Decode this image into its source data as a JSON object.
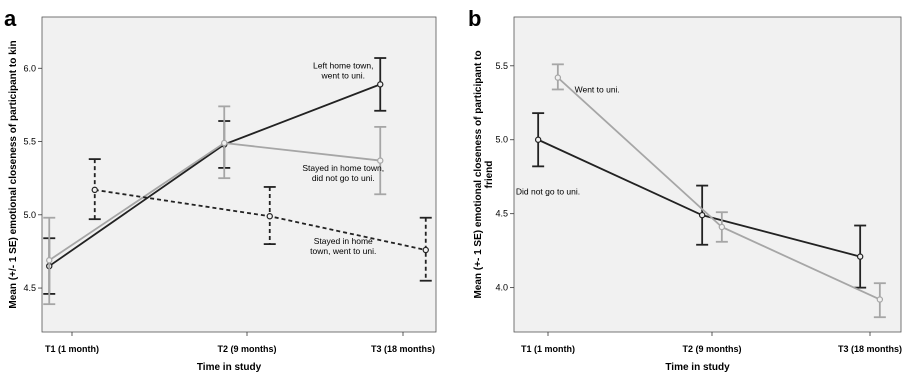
{
  "figure": {
    "panels": [
      {
        "letter": "a",
        "chart_data": {
          "type": "line",
          "categories": [
            "T1 (1 month)",
            "T2 (9 months)",
            "T3 (18 months)"
          ],
          "xlabel": "Time in study",
          "ylabel": "Mean (+/- 1 SE) emotional closeness of participant to kin",
          "ylim": [
            4.2,
            6.35
          ],
          "yticks": [
            "4.5",
            "5.0",
            "5.5",
            "6.0"
          ],
          "series": [
            {
              "style": "solid",
              "color": "#222222",
              "x_offset": -0.13,
              "values": [
                4.65,
                5.48,
                5.89
              ],
              "se_low": [
                4.46,
                5.32,
                5.71
              ],
              "se_high": [
                4.84,
                5.64,
                6.07
              ]
            },
            {
              "style": "solid",
              "color": "#a6a6a6",
              "x_offset": -0.13,
              "values": [
                4.69,
                5.49,
                5.37
              ],
              "se_low": [
                4.39,
                5.25,
                5.14
              ],
              "se_high": [
                4.98,
                5.74,
                5.6
              ]
            },
            {
              "style": "dashed",
              "color": "#222222",
              "x_offset": 0.13,
              "values": [
                5.17,
                4.99,
                4.76
              ],
              "se_low": [
                4.97,
                4.8,
                4.55
              ],
              "se_high": [
                5.38,
                5.19,
                4.98
              ]
            }
          ],
          "annotations": [
            {
              "lines": [
                "Left home town,",
                "went to uni."
              ],
              "x": 1.55,
              "y": 6.0
            },
            {
              "lines": [
                "Stayed in home town,",
                "did not go to uni."
              ],
              "x": 1.55,
              "y": 5.3
            },
            {
              "lines": [
                "Stayed in home",
                "town, went to uni."
              ],
              "x": 1.55,
              "y": 4.8
            }
          ]
        }
      },
      {
        "letter": "b",
        "chart_data": {
          "type": "line",
          "categories": [
            "T1 (1 month)",
            "T2 (9 months)",
            "T3 (18 months)"
          ],
          "xlabel": "Time in study",
          "ylabel": "Mean (+- 1 SE) emotional closeness of participant to friend",
          "ylabel_lines": [
            "Mean (+- 1 SE) emotional closeness of participant to",
            "friend"
          ],
          "ylim": [
            3.7,
            5.83
          ],
          "yticks": [
            "4.0",
            "4.5",
            "5.0",
            "5.5"
          ],
          "series": [
            {
              "style": "solid",
              "color": "#222222",
              "x_offset": -0.06,
              "values": [
                5.0,
                4.49,
                4.21
              ],
              "se_low": [
                4.82,
                4.29,
                4.0
              ],
              "se_high": [
                5.18,
                4.69,
                4.42
              ]
            },
            {
              "style": "solid",
              "color": "#a6a6a6",
              "x_offset": 0.06,
              "values": [
                5.42,
                4.41,
                3.92
              ],
              "se_low": [
                5.34,
                4.31,
                3.8
              ],
              "se_high": [
                5.51,
                4.51,
                4.03
              ]
            }
          ],
          "annotations": [
            {
              "lines": [
                "Went to uni."
              ],
              "x": 0.3,
              "y": 5.32
            },
            {
              "lines": [
                "Did not go to uni."
              ],
              "x": 0.0,
              "y": 4.63
            }
          ]
        }
      }
    ]
  }
}
